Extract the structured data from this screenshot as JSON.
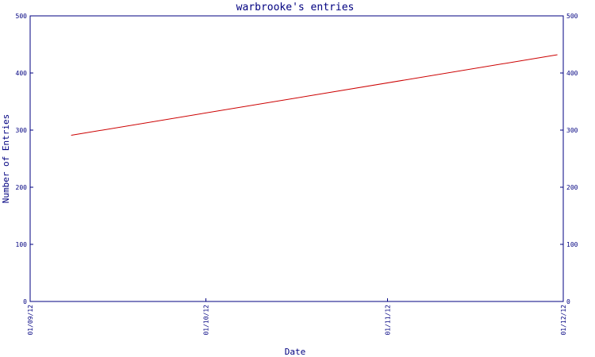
{
  "chart_data": {
    "type": "line",
    "title": "warbrooke's entries",
    "xlabel": "Date",
    "ylabel": "Number of Entries",
    "x_ticks": [
      "01/09/12",
      "01/10/12",
      "01/11/12",
      "01/12/12"
    ],
    "xlim": [
      "01/09/12",
      "01/12/12"
    ],
    "ylim": [
      0,
      500
    ],
    "y_ticks": [
      0,
      100,
      200,
      300,
      400,
      500
    ],
    "y_axis_right": true,
    "grid": false,
    "series": [
      {
        "color": "#cc0000",
        "x": [
          "08/09/12",
          "30/11/12"
        ],
        "values": [
          291,
          432
        ]
      }
    ]
  },
  "colors": {
    "axis": "#000080",
    "series": "#cc0000",
    "background": "#ffffff"
  }
}
